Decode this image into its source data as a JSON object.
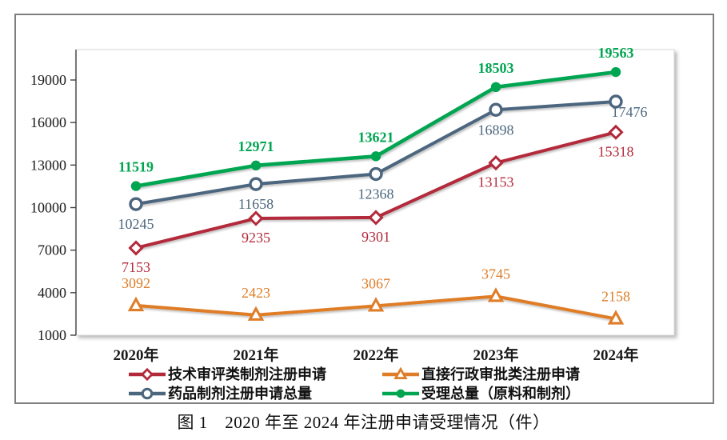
{
  "caption": "图 1　2020 年至 2024 年注册申请受理情况（件）",
  "chart_data": {
    "type": "line",
    "title": "",
    "xlabel": "",
    "ylabel": "",
    "categories": [
      "2020年",
      "2021年",
      "2022年",
      "2023年",
      "2024年"
    ],
    "series": [
      {
        "name": "技术审评类制剂注册申请",
        "color": "#B22A3A",
        "marker": "open-diamond",
        "values": [
          7153,
          9235,
          9301,
          13153,
          15318
        ],
        "label_side": "below",
        "label_bold": false
      },
      {
        "name": "直接行政审批类注册申请",
        "color": "#DF7D28",
        "marker": "open-triangle",
        "values": [
          3092,
          2423,
          3067,
          3745,
          2158
        ],
        "label_side": "above",
        "label_bold": false
      },
      {
        "name": "药品制剂注册申请总量",
        "color": "#4C667E",
        "marker": "open-circle",
        "values": [
          10245,
          11658,
          12368,
          16898,
          17476
        ],
        "label_side": "below",
        "label_bold": false
      },
      {
        "name": "受理总量（原料和制剂）",
        "color": "#00A551",
        "marker": "filled-circle",
        "values": [
          11519,
          12971,
          13621,
          18503,
          19563
        ],
        "label_side": "above",
        "label_bold": true
      }
    ],
    "yticks": [
      1000,
      4000,
      7000,
      10000,
      13000,
      16000,
      19000
    ],
    "ylim": [
      1000,
      21000
    ],
    "grid": false,
    "legend_position": "bottom",
    "legend_rows": [
      [
        0,
        1
      ],
      [
        2,
        3
      ]
    ],
    "axis_color": "#404040",
    "plot_border_color": "#d9d9d9",
    "frame_border_color": "#7f7f7f",
    "tick_label_color": "#1a1a1a"
  }
}
